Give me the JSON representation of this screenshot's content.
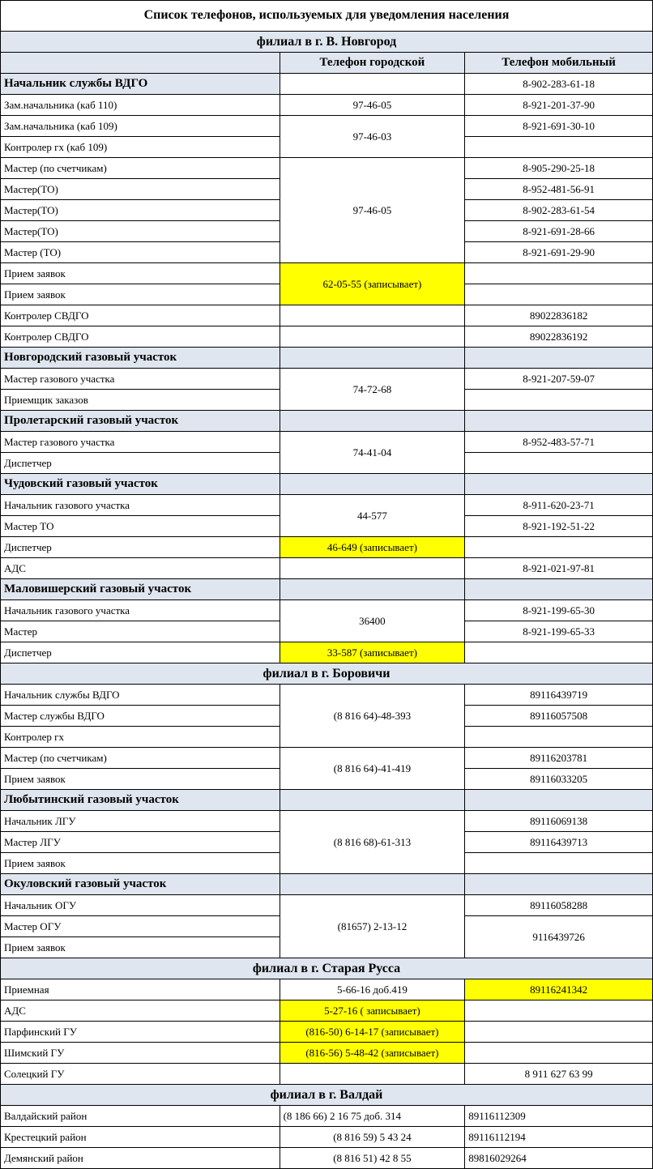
{
  "title": "Список телефонов, используемых для уведомления населения",
  "col": {
    "city": "Телефон городской",
    "mob": "Телефон мобильный"
  },
  "branches": {
    "novgorod": "филиал в г. В. Новгород",
    "borovichi": "филиал в г. Боровичи",
    "strussa": "филиал в г. Старая Русса",
    "valday": "филиал в г. Валдай"
  },
  "sections": {
    "s1": "Новгородский газовый участок",
    "s2": "Пролетарский газовый участок",
    "s3": "Чудовский газовый участок",
    "s4": "Маловишерский газовый участок",
    "s5": "Любытинский газовый участок",
    "s6": "Окуловский  газовый участок"
  },
  "r": {
    "r0": {
      "pos": "Начальник службы ВДГО",
      "city": "",
      "mob": "8-902-283-61-18"
    },
    "r1": {
      "pos": "Зам.начальника (каб 110)",
      "city": "97-46-05",
      "mob": "8-921-201-37-90"
    },
    "r2": {
      "pos": "Зам.начальника (каб 109)",
      "city": "97-46-03",
      "mob": "8-921-691-30-10"
    },
    "r3": {
      "pos": "Контролер гх (каб 109)",
      "mob": ""
    },
    "r4": {
      "pos": "Мастер (по счетчикам)",
      "city": "97-46-05",
      "mob": "8-905-290-25-18"
    },
    "r5": {
      "pos": "Мастер(ТО)",
      "mob": "8-952-481-56-91"
    },
    "r6": {
      "pos": "Мастер(ТО)",
      "mob": "8-902-283-61-54"
    },
    "r7": {
      "pos": "Мастер(ТО)",
      "mob": "8-921-691-28-66"
    },
    "r8": {
      "pos": "Мастер (ТО)",
      "mob": "8-921-691-29-90"
    },
    "r9": {
      "pos": "Прием заявок",
      "city": "62-05-55 (записывает)",
      "mob": ""
    },
    "r10": {
      "pos": "Прием заявок",
      "mob": ""
    },
    "r11": {
      "pos": "Контролер СВДГО",
      "city": "",
      "mob": "89022836182"
    },
    "r12": {
      "pos": "Контролер СВДГО",
      "city": "",
      "mob": "89022836192"
    },
    "r13": {
      "pos": "Мастер газового участка",
      "city": "74-72-68",
      "mob": "8-921-207-59-07"
    },
    "r14": {
      "pos": "Приемщик заказов",
      "mob": ""
    },
    "r15": {
      "pos": "Мастер газового участка",
      "city": "74-41-04",
      "mob": "8-952-483-57-71"
    },
    "r16": {
      "pos": "Диспетчер",
      "mob": ""
    },
    "r17": {
      "pos": "Начальник газового участка",
      "city": "44-577",
      "mob": "8-911-620-23-71"
    },
    "r18": {
      "pos": "Мастер ТО",
      "mob": "8-921-192-51-22"
    },
    "r19": {
      "pos": "Диспетчер",
      "city": "46-649 (записывает)",
      "mob": ""
    },
    "r20": {
      "pos": "АДС",
      "city": "",
      "mob": "8-921-021-97-81"
    },
    "r21": {
      "pos": "Начальник газового участка",
      "city": "36400",
      "mob": "8-921-199-65-30"
    },
    "r22": {
      "pos": "Мастер",
      "mob": "8-921-199-65-33"
    },
    "r23": {
      "pos": "Диспетчер",
      "city": "33-587 (записывает)",
      "mob": ""
    },
    "r24": {
      "pos": "Начальник службы ВДГО",
      "city": "(8 816 64)-48-393",
      "mob": "89116439719"
    },
    "r25": {
      "pos": "Мастер службы ВДГО",
      "mob": "89116057508"
    },
    "r26": {
      "pos": "Контролер гх",
      "mob": ""
    },
    "r27": {
      "pos": "Мастер (по счетчикам)",
      "city": "(8 816 64)-41-419",
      "mob": "89116203781"
    },
    "r28": {
      "pos": "Прием заявок",
      "mob": "89116033205"
    },
    "r29": {
      "pos": "Начальник ЛГУ",
      "city": "(8 816 68)-61-313",
      "mob": "89116069138"
    },
    "r30": {
      "pos": "Мастер ЛГУ",
      "mob": "89116439713"
    },
    "r31": {
      "pos": "Прием заявок",
      "mob": ""
    },
    "r32": {
      "pos": "Начальник ОГУ",
      "city": "(81657) 2-13-12",
      "mob": "89116058288"
    },
    "r33": {
      "pos": "Мастер ОГУ",
      "mob": "9116439726"
    },
    "r34": {
      "pos": "Прием заявок"
    },
    "r35": {
      "pos": "Приемная",
      "city": "5-66-16 доб.419",
      "mob": "89116241342"
    },
    "r36": {
      "pos": "АДС",
      "city": "5-27-16 ( записывает)",
      "mob": ""
    },
    "r37": {
      "pos": "Парфинский ГУ",
      "city": "(816-50) 6-14-17 (записывает)",
      "mob": ""
    },
    "r38": {
      "pos": "Шимский ГУ",
      "city": "(816-56) 5-48-42 (записывает)",
      "mob": ""
    },
    "r39": {
      "pos": "Солецкий ГУ",
      "city": "",
      "mob": "8 911 627 63 99"
    },
    "r40": {
      "pos": "Валдайский район",
      "city": "(8 186 66) 2 16 75  доб. 314",
      "mob": "89116112309"
    },
    "r41": {
      "pos": "Крестецкий район",
      "city": "(8 816 59) 5 43 24",
      "mob": "89116112194"
    },
    "r42": {
      "pos": "Демянский район",
      "city": "(8 816 51) 42 8 55",
      "mob": "89816029264"
    }
  }
}
